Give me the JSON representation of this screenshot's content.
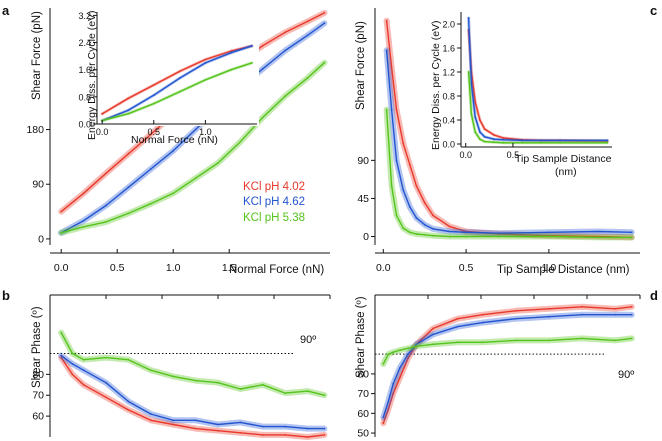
{
  "panel_letters": [
    "a",
    "b",
    "c",
    "d"
  ],
  "colors": {
    "red": "#e8392b",
    "blue": "#2255d0",
    "green": "#55c41c",
    "axis": "#111111",
    "dotted": "#111111"
  },
  "chart_data": [
    {
      "id": "a",
      "type": "line",
      "xlabel": "Normal Force (nN)",
      "ylabel": "Shear Force (pN)",
      "xlim": [
        -0.1,
        2.4
      ],
      "ylim": [
        -10,
        380
      ],
      "xticks": [
        "0.0",
        "0.5",
        "1.0",
        "1.5"
      ],
      "yticks": [
        "0",
        "90",
        "180"
      ],
      "legend_position": "right",
      "series": [
        {
          "name": "KCl pH 4.02",
          "x": [
            0,
            0.2,
            0.4,
            0.6,
            0.8,
            1.0,
            1.2,
            1.4,
            1.6,
            1.8,
            2.0,
            2.2,
            2.35
          ],
          "values": [
            45,
            75,
            108,
            140,
            172,
            205,
            237,
            265,
            292,
            318,
            340,
            358,
            372
          ]
        },
        {
          "name": "KCl pH 4.62",
          "x": [
            0,
            0.2,
            0.4,
            0.6,
            0.8,
            1.0,
            1.2,
            1.4,
            1.6,
            1.8,
            2.0,
            2.2,
            2.35
          ],
          "values": [
            10,
            30,
            55,
            85,
            115,
            145,
            180,
            215,
            250,
            280,
            310,
            335,
            355
          ]
        },
        {
          "name": "KCl pH 5.38",
          "x": [
            0,
            0.2,
            0.4,
            0.6,
            0.8,
            1.0,
            1.2,
            1.4,
            1.6,
            1.8,
            2.0,
            2.2,
            2.35
          ],
          "values": [
            10,
            20,
            28,
            42,
            58,
            75,
            100,
            125,
            160,
            200,
            235,
            265,
            290
          ]
        }
      ]
    },
    {
      "id": "a-inset",
      "type": "line",
      "xlabel": "Normal Force (nN)",
      "ylabel": "Energy Diss. per Cycle (eV)",
      "xlim": [
        -0.05,
        1.5
      ],
      "ylim": [
        0,
        3.3
      ],
      "xticks": [
        "0.0",
        "0.5",
        "1.0"
      ],
      "yticks": [
        "0.0",
        "0.8",
        "1.6",
        "2.4",
        "3.2"
      ],
      "series": [
        {
          "name": "KCl pH 4.02",
          "x": [
            0,
            0.25,
            0.5,
            0.75,
            1.0,
            1.25,
            1.45
          ],
          "values": [
            0.3,
            0.75,
            1.15,
            1.55,
            1.9,
            2.15,
            2.3
          ]
        },
        {
          "name": "KCl pH 4.62",
          "x": [
            0,
            0.25,
            0.5,
            0.75,
            1.0,
            1.25,
            1.45
          ],
          "values": [
            0.1,
            0.4,
            0.85,
            1.35,
            1.8,
            2.1,
            2.3
          ]
        },
        {
          "name": "KCl pH 5.38",
          "x": [
            0,
            0.25,
            0.5,
            0.75,
            1.0,
            1.25,
            1.45
          ],
          "values": [
            0.1,
            0.3,
            0.6,
            0.95,
            1.3,
            1.6,
            1.8
          ]
        }
      ]
    },
    {
      "id": "b",
      "type": "line",
      "xlabel": "",
      "ylabel": "Shear Phase (º)",
      "xlim": [
        -0.1,
        2.4
      ],
      "ylim": [
        50,
        118
      ],
      "yticks": [
        "60",
        "70",
        "80"
      ],
      "reference_line": {
        "value": 90,
        "label": "90º"
      },
      "series": [
        {
          "name": "KCl pH 4.02",
          "x": [
            0,
            0.1,
            0.2,
            0.4,
            0.6,
            0.8,
            1.0,
            1.2,
            1.4,
            1.6,
            1.8,
            2.0,
            2.2,
            2.35
          ],
          "values": [
            88,
            80,
            75,
            69,
            63,
            58,
            56,
            54,
            53,
            52,
            51,
            51,
            50,
            51
          ]
        },
        {
          "name": "KCl pH 4.62",
          "x": [
            0,
            0.1,
            0.2,
            0.4,
            0.6,
            0.8,
            1.0,
            1.2,
            1.4,
            1.6,
            1.8,
            2.0,
            2.2,
            2.35
          ],
          "values": [
            89,
            85,
            82,
            76,
            67,
            61,
            58,
            58,
            56,
            57,
            55,
            55,
            54,
            54
          ]
        },
        {
          "name": "KCl pH 5.38",
          "x": [
            0,
            0.1,
            0.2,
            0.4,
            0.6,
            0.8,
            1.0,
            1.2,
            1.4,
            1.6,
            1.8,
            2.0,
            2.2,
            2.35
          ],
          "values": [
            100,
            90,
            87,
            88,
            87,
            82,
            79,
            77,
            76,
            73,
            75,
            71,
            72,
            70
          ]
        }
      ]
    },
    {
      "id": "c",
      "type": "line",
      "xlabel": "Tip Sample Distance (nm)",
      "ylabel": "Shear Force (pN)",
      "xlim": [
        -0.05,
        1.55
      ],
      "ylim": [
        -10,
        270
      ],
      "xticks": [
        "0.0",
        "0.5",
        "1.0"
      ],
      "yticks": [
        "0",
        "45",
        "90"
      ],
      "series": [
        {
          "name": "KCl pH 4.02",
          "x": [
            0.02,
            0.05,
            0.08,
            0.12,
            0.16,
            0.2,
            0.25,
            0.3,
            0.4,
            0.5,
            0.7,
            1.0,
            1.3,
            1.5
          ],
          "values": [
            255,
            200,
            150,
            110,
            85,
            60,
            40,
            25,
            12,
            6,
            3,
            1,
            0,
            -1
          ]
        },
        {
          "name": "KCl pH 4.62",
          "x": [
            0.02,
            0.05,
            0.08,
            0.12,
            0.16,
            0.2,
            0.25,
            0.3,
            0.4,
            0.5,
            0.7,
            1.0,
            1.3,
            1.5
          ],
          "values": [
            220,
            150,
            90,
            55,
            35,
            22,
            14,
            9,
            6,
            5,
            4,
            5,
            6,
            5
          ]
        },
        {
          "name": "KCl pH 5.38",
          "x": [
            0.02,
            0.05,
            0.08,
            0.12,
            0.16,
            0.2,
            0.25,
            0.3,
            0.4,
            0.5,
            0.7,
            1.0,
            1.3,
            1.5
          ],
          "values": [
            150,
            60,
            25,
            10,
            5,
            3,
            2,
            1,
            0,
            0,
            0,
            0,
            -1,
            -1
          ]
        }
      ]
    },
    {
      "id": "c-inset",
      "type": "line",
      "xlabel": "Tip Sample Distance (nm)",
      "ylabel": "Energy Diss. per Cycle (eV)",
      "xlim": [
        -0.05,
        1.55
      ],
      "ylim": [
        -0.05,
        2.2
      ],
      "xticks": [
        "0.0",
        "0.5"
      ],
      "yticks": [
        "0.0",
        "0.4",
        "0.8",
        "1.2",
        "1.6",
        "2.0"
      ],
      "series": [
        {
          "name": "KCl pH 4.02",
          "x": [
            0.03,
            0.06,
            0.1,
            0.15,
            0.2,
            0.3,
            0.4,
            0.6,
            0.8,
            1.0,
            1.5
          ],
          "values": [
            1.9,
            1.2,
            0.7,
            0.4,
            0.25,
            0.15,
            0.1,
            0.07,
            0.06,
            0.06,
            0.05
          ]
        },
        {
          "name": "KCl pH 4.62",
          "x": [
            0.03,
            0.06,
            0.1,
            0.15,
            0.2,
            0.3,
            0.4,
            0.6,
            0.8,
            1.0,
            1.5
          ],
          "values": [
            2.1,
            1.0,
            0.45,
            0.2,
            0.12,
            0.08,
            0.07,
            0.06,
            0.06,
            0.06,
            0.06
          ]
        },
        {
          "name": "KCl pH 5.38",
          "x": [
            0.03,
            0.06,
            0.1,
            0.15,
            0.2,
            0.3,
            0.4,
            0.6,
            0.8,
            1.0,
            1.5
          ],
          "values": [
            1.2,
            0.5,
            0.2,
            0.08,
            0.04,
            0.03,
            0.02,
            0.02,
            0.02,
            0.02,
            0.02
          ]
        }
      ]
    },
    {
      "id": "d",
      "type": "line",
      "xlabel": "",
      "ylabel": "Shear Phase (º)",
      "xlim": [
        -0.05,
        1.55
      ],
      "ylim": [
        48,
        120
      ],
      "yticks": [
        "50",
        "60",
        "70",
        "80"
      ],
      "reference_line": {
        "value": 90,
        "label": "90º"
      },
      "series": [
        {
          "name": "KCl pH 4.02",
          "x": [
            0.0,
            0.03,
            0.06,
            0.1,
            0.15,
            0.2,
            0.3,
            0.45,
            0.6,
            0.8,
            1.0,
            1.2,
            1.4,
            1.5
          ],
          "values": [
            55,
            62,
            70,
            78,
            88,
            95,
            103,
            108,
            110,
            112,
            113,
            114,
            113,
            114
          ]
        },
        {
          "name": "KCl pH 4.62",
          "x": [
            0.0,
            0.03,
            0.06,
            0.1,
            0.15,
            0.2,
            0.3,
            0.45,
            0.6,
            0.8,
            1.0,
            1.2,
            1.4,
            1.5
          ],
          "values": [
            58,
            66,
            75,
            83,
            90,
            95,
            100,
            104,
            106,
            108,
            109,
            110,
            110,
            110
          ]
        },
        {
          "name": "KCl pH 5.38",
          "x": [
            0.0,
            0.03,
            0.06,
            0.1,
            0.15,
            0.2,
            0.3,
            0.45,
            0.6,
            0.8,
            1.0,
            1.2,
            1.4,
            1.5
          ],
          "values": [
            85,
            90,
            91,
            92,
            93,
            94,
            95,
            96,
            96,
            97,
            97,
            98,
            97,
            98
          ]
        }
      ]
    }
  ]
}
